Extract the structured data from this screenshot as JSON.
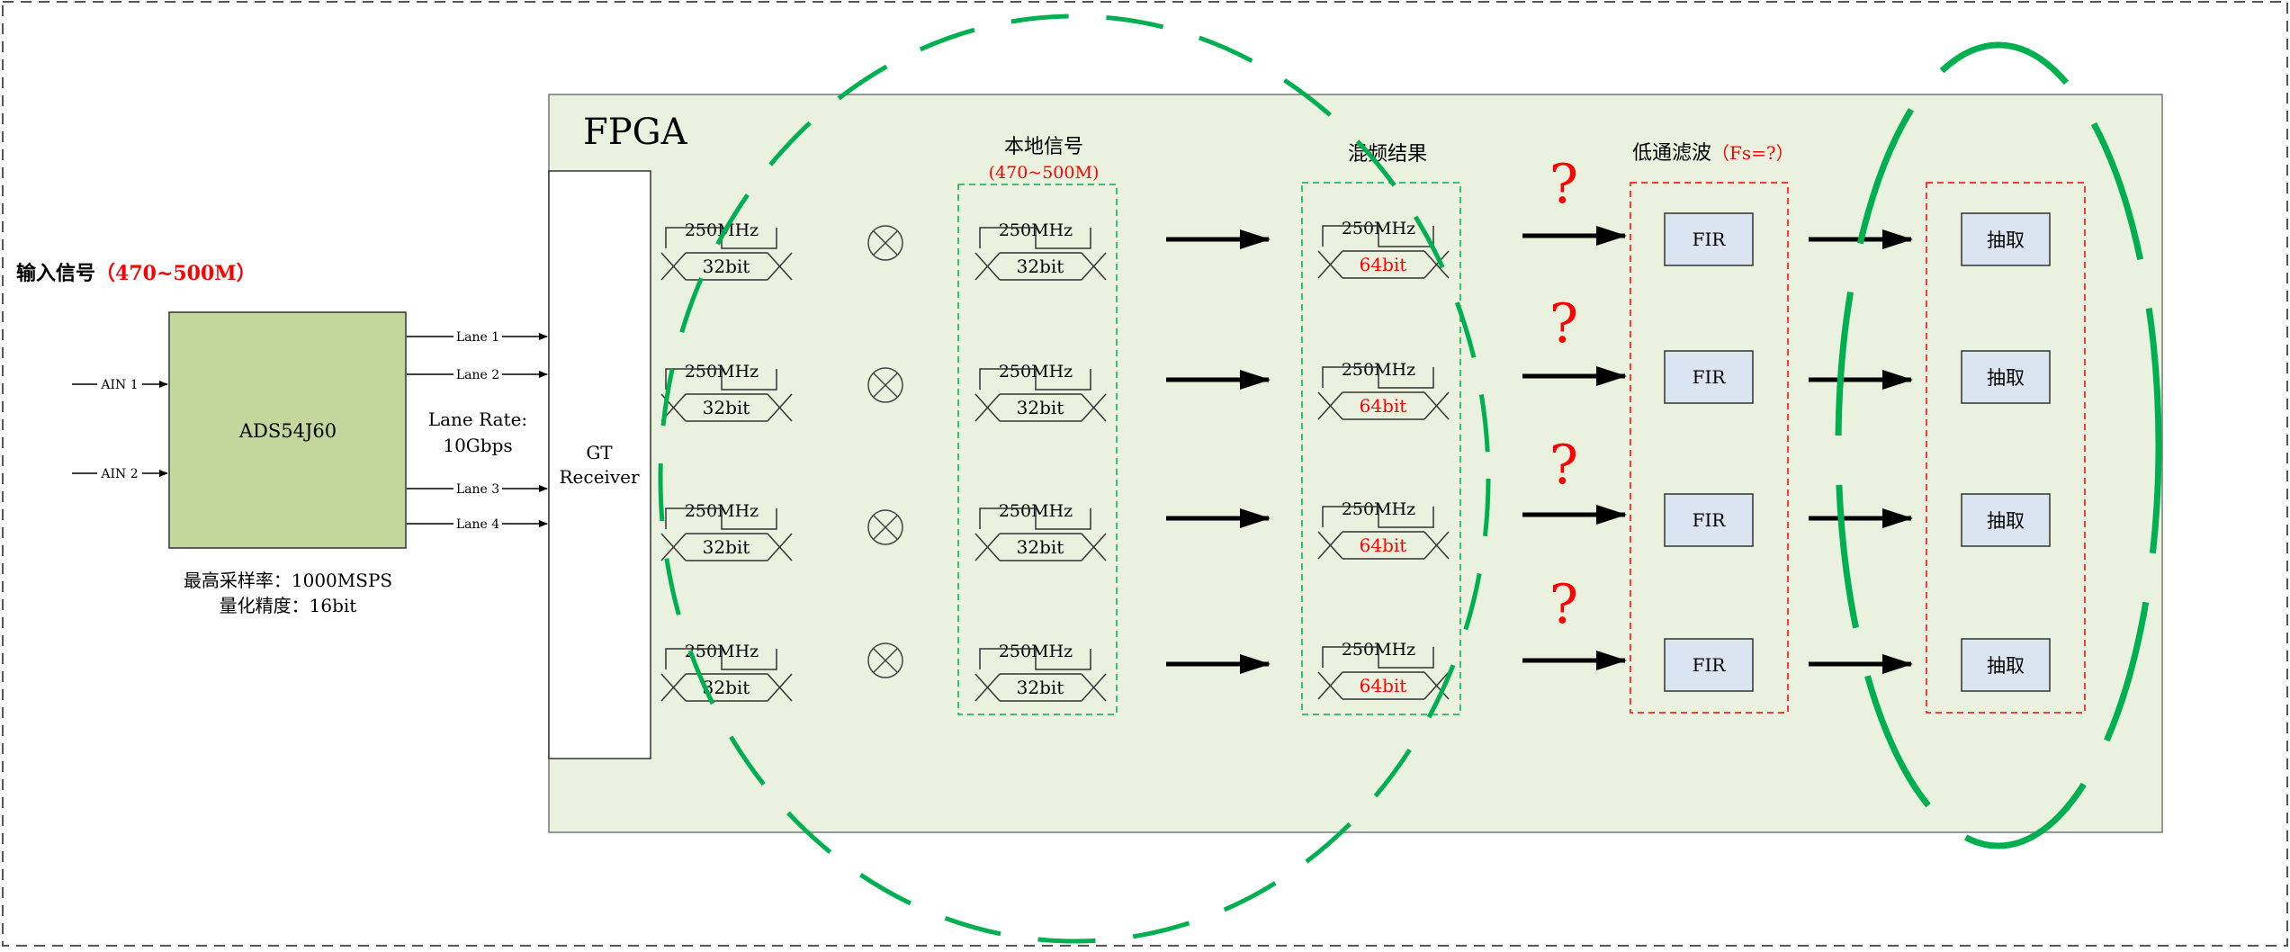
{
  "input": {
    "title": "输入信号",
    "range": "（470~500M）",
    "ain": [
      "AIN 1",
      "AIN 2"
    ]
  },
  "adc": {
    "name": "ADS54J60",
    "lanes": [
      "Lane 1",
      "Lane 2",
      "Lane 3",
      "Lane 4"
    ],
    "lane_rate_label": "Lane Rate:",
    "lane_rate_value": "10Gbps",
    "spec_sample": "最高采样率：1000MSPS",
    "spec_precision": "量化精度：16bit"
  },
  "fpga": {
    "label": "FPGA",
    "gt_line1": "GT",
    "gt_line2": "Receiver"
  },
  "channels": {
    "freq": "250MHz",
    "width_in": "32bit",
    "width_mix": "64bit"
  },
  "local": {
    "title": "本地信号",
    "range": "(470~500M)"
  },
  "mix": {
    "title": "混频结果"
  },
  "lpf": {
    "title": "低通滤波",
    "fs": "（Fs=?）",
    "fir": "FIR",
    "question": "?"
  },
  "decim": {
    "label": "抽取"
  },
  "colors": {
    "fpga_bg": "#eaf1de",
    "adc_fill": "#c3d69b",
    "fir_fill": "#dbe5f1",
    "green_dash": "#00b050",
    "red": "#ff0000"
  }
}
